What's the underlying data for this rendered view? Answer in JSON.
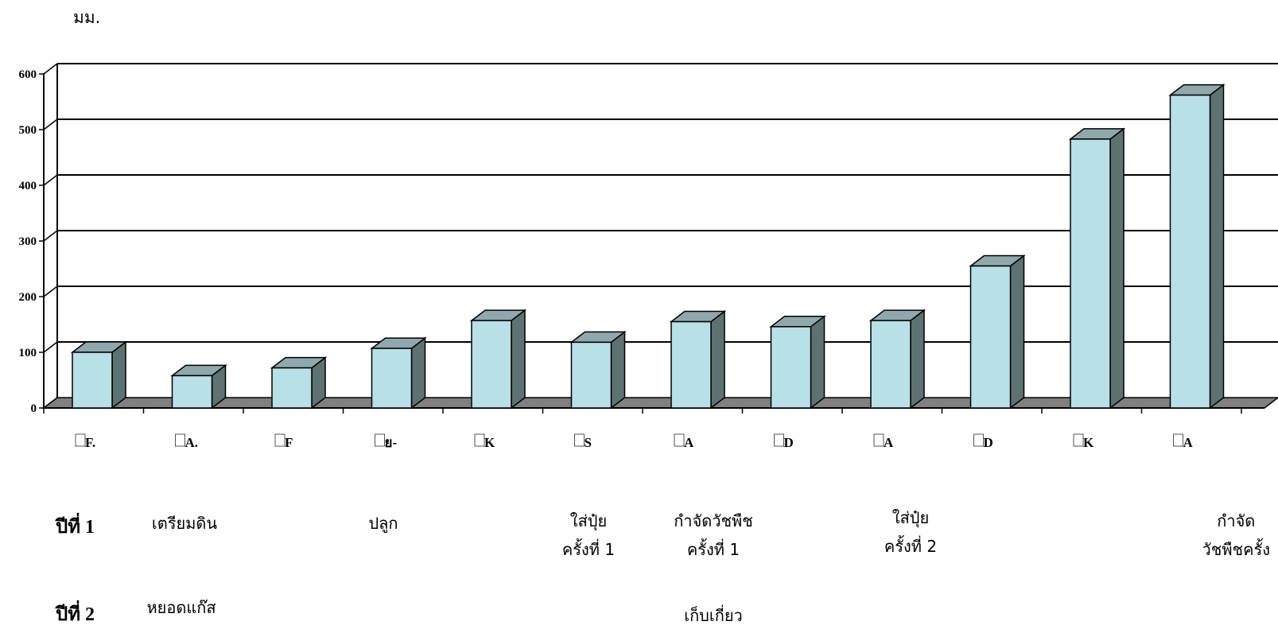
{
  "unit_label": "มม.",
  "year_labels": [
    "ปีที่ 1",
    "ปีที่ 2"
  ],
  "activities": [
    {
      "id": "prep",
      "lines": [
        "เตรียมดิน"
      ]
    },
    {
      "id": "plant",
      "lines": [
        "ปลูก"
      ]
    },
    {
      "id": "fert1",
      "lines": [
        "ใส่ปุ๋ย",
        "ครั้งที่ 1"
      ]
    },
    {
      "id": "weed1",
      "lines": [
        "กำจัดวัชพืช",
        "ครั้งที่ 1"
      ]
    },
    {
      "id": "fert2",
      "lines": [
        "ใส่ปุ๋ย",
        "ครั้งที่ 2"
      ]
    },
    {
      "id": "weed2",
      "lines": [
        "กำจัด",
        "วัชพืชครั้ง"
      ]
    },
    {
      "id": "gas",
      "lines": [
        "หยอดแก๊ส"
      ]
    },
    {
      "id": "harvest",
      "lines": [
        "เก็บเกี่ยว"
      ]
    }
  ],
  "chart_data": {
    "type": "bar",
    "style": "3d-column",
    "categories": [
      "F.",
      "A.",
      "F",
      "ย-",
      "K",
      "S",
      "A",
      "D",
      "A",
      "D",
      "K",
      "A"
    ],
    "values": [
      100,
      58,
      72,
      107,
      157,
      118,
      155,
      146,
      157,
      255,
      483,
      562
    ],
    "yticks": [
      0,
      100,
      200,
      300,
      400,
      500,
      600
    ],
    "ylim": [
      0,
      600
    ],
    "grid": true,
    "colors": {
      "bar_front": "#b8e0e6",
      "bar_top": "#8fa8ab",
      "bar_side": "#5e7371",
      "floor": "#808080"
    }
  }
}
